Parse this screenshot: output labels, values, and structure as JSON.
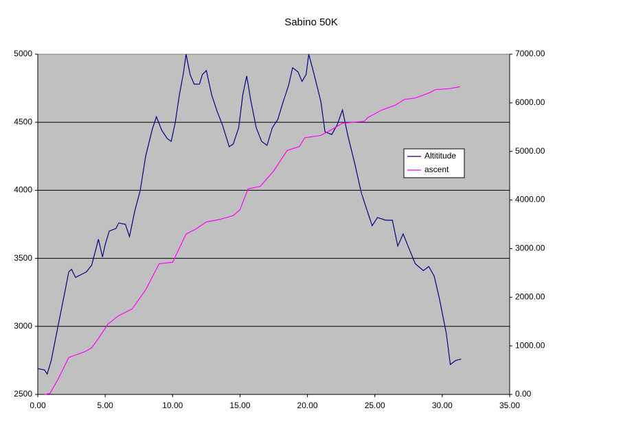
{
  "chart_data": {
    "type": "line",
    "title": "Sabino 50K",
    "xlim": [
      0,
      35
    ],
    "xticks": [
      {
        "value": 0,
        "label": "0.00"
      },
      {
        "value": 5,
        "label": "5.00"
      },
      {
        "value": 10,
        "label": "10.00"
      },
      {
        "value": 15,
        "label": "15.00"
      },
      {
        "value": 20,
        "label": "20.00"
      },
      {
        "value": 25,
        "label": "25.00"
      },
      {
        "value": 30,
        "label": "30.00"
      },
      {
        "value": 35,
        "label": "35.00"
      }
    ],
    "ylim": [
      2500,
      5000
    ],
    "yticks": [
      2500,
      3000,
      3500,
      4000,
      4500,
      5000
    ],
    "y2lim": [
      0,
      7000
    ],
    "y2ticks": [
      {
        "value": 0,
        "label": "0.00"
      },
      {
        "value": 1000,
        "label": "1000.00"
      },
      {
        "value": 2000,
        "label": "2000.00"
      },
      {
        "value": 3000,
        "label": "3000.00"
      },
      {
        "value": 4000,
        "label": "4000.00"
      },
      {
        "value": 5000,
        "label": "5000.00"
      },
      {
        "value": 6000,
        "label": "6000.00"
      },
      {
        "value": 7000,
        "label": "7000.00"
      }
    ],
    "grid": true,
    "legend": "right",
    "series": [
      {
        "name": "Altititude",
        "color": "#000080",
        "x": [
          0,
          0.5,
          0.7,
          1.0,
          1.5,
          2.0,
          2.3,
          2.5,
          2.8,
          3.2,
          3.6,
          4.0,
          4.5,
          4.8,
          5.0,
          5.3,
          5.8,
          6.0,
          6.5,
          6.8,
          7.2,
          7.6,
          8.0,
          8.5,
          8.8,
          9.2,
          9.6,
          9.9,
          10.2,
          10.5,
          10.8,
          11.0,
          11.3,
          11.6,
          12.0,
          12.2,
          12.5,
          12.9,
          13.3,
          13.7,
          14.2,
          14.5,
          14.9,
          15.2,
          15.5,
          15.8,
          16.2,
          16.6,
          17.0,
          17.4,
          17.8,
          18.2,
          18.6,
          18.9,
          19.3,
          19.6,
          19.9,
          20.1,
          20.5,
          21.0,
          21.3,
          21.8,
          22.2,
          22.6,
          23.0,
          23.5,
          24.0,
          24.4,
          24.8,
          25.2,
          25.8,
          26.3,
          26.7,
          27.1,
          27.5,
          28.0,
          28.6,
          29.0,
          29.4,
          29.8,
          30.3,
          30.6,
          31.0,
          31.4
        ],
        "values": [
          2690,
          2680,
          2650,
          2750,
          3000,
          3250,
          3400,
          3420,
          3360,
          3380,
          3400,
          3450,
          3640,
          3510,
          3600,
          3700,
          3720,
          3760,
          3750,
          3660,
          3850,
          4000,
          4250,
          4450,
          4540,
          4440,
          4380,
          4360,
          4500,
          4700,
          4860,
          5000,
          4850,
          4780,
          4780,
          4850,
          4880,
          4700,
          4580,
          4480,
          4320,
          4340,
          4460,
          4700,
          4840,
          4660,
          4460,
          4360,
          4330,
          4460,
          4520,
          4650,
          4770,
          4900,
          4870,
          4800,
          4850,
          5000,
          4850,
          4650,
          4430,
          4410,
          4480,
          4590,
          4400,
          4200,
          3980,
          3860,
          3740,
          3800,
          3780,
          3780,
          3590,
          3680,
          3580,
          3460,
          3410,
          3440,
          3370,
          3200,
          2950,
          2720,
          2750,
          2760
        ]
      },
      {
        "name": "ascent",
        "color": "#ff00ff",
        "axis": "y2",
        "x": [
          0.5,
          0.9,
          1.5,
          2.3,
          3.5,
          4.0,
          4.5,
          5.2,
          6.0,
          7.0,
          8.0,
          9.0,
          10.0,
          11.0,
          11.7,
          12.5,
          13.5,
          14.5,
          15.0,
          15.6,
          16.5,
          17.5,
          18.5,
          19.4,
          19.8,
          21.0,
          22.0,
          22.6,
          24.2,
          24.5,
          25.5,
          26.5,
          27.2,
          28.0,
          29.0,
          29.5,
          30.5,
          31.3
        ],
        "values": [
          0,
          20,
          310,
          760,
          880,
          960,
          1150,
          1450,
          1620,
          1760,
          2150,
          2690,
          2720,
          3300,
          3400,
          3550,
          3600,
          3680,
          3800,
          4230,
          4280,
          4600,
          5020,
          5100,
          5280,
          5330,
          5480,
          5580,
          5620,
          5700,
          5850,
          5950,
          6070,
          6100,
          6200,
          6270,
          6290,
          6330
        ]
      }
    ]
  }
}
